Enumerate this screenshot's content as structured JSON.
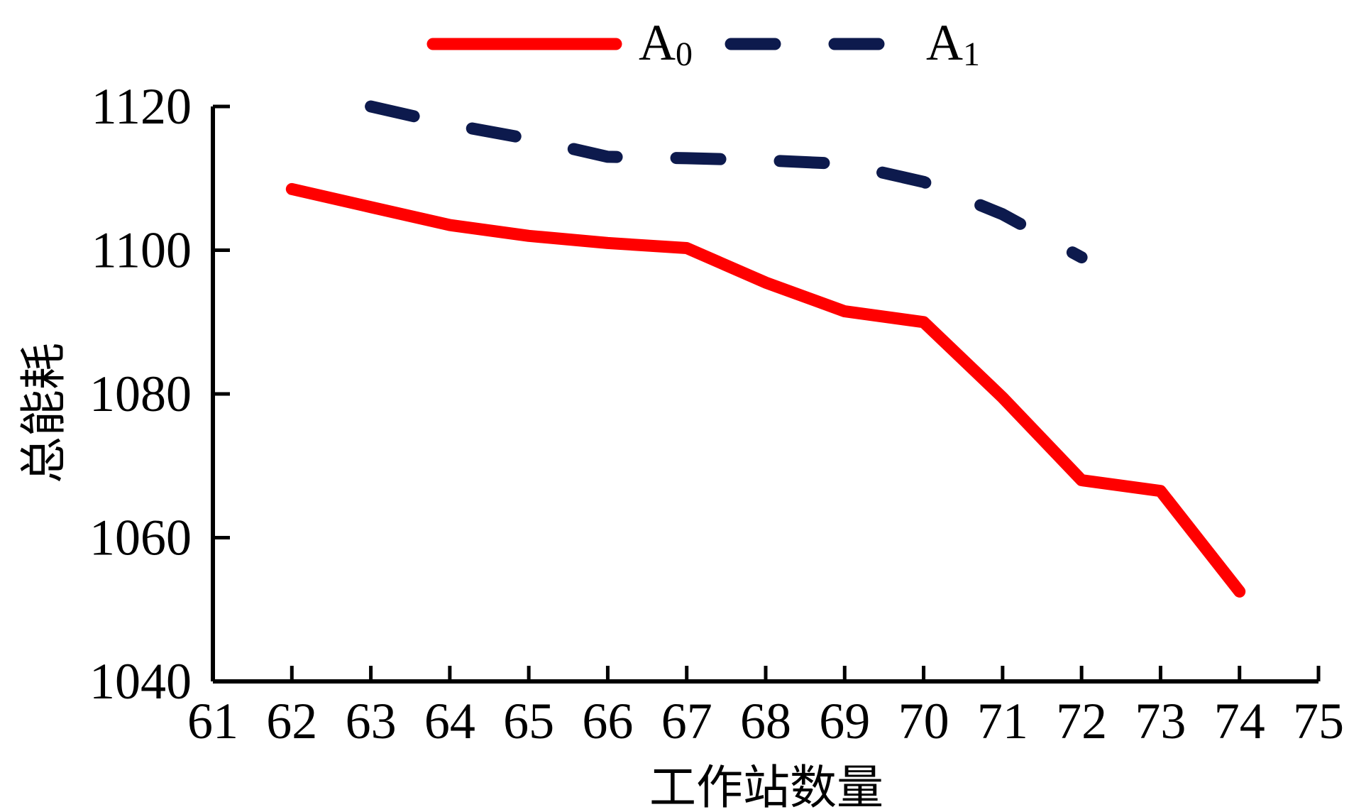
{
  "chart_data": {
    "type": "line",
    "title": "",
    "xlabel": "工作站数量",
    "ylabel": "总能耗",
    "xlim": [
      61,
      75
    ],
    "ylim": [
      1040,
      1120
    ],
    "xticks": [
      61,
      62,
      63,
      64,
      65,
      66,
      67,
      68,
      69,
      70,
      71,
      72,
      73,
      74,
      75
    ],
    "yticks": [
      1040,
      1060,
      1080,
      1100,
      1120
    ],
    "grid": false,
    "legend_position": "top-center",
    "series": [
      {
        "name": "A0",
        "label_main": "A",
        "label_sub": "0",
        "color": "#ff0000",
        "style": "solid",
        "x": [
          62,
          63,
          64,
          65,
          66,
          67,
          68,
          69,
          70,
          71,
          72,
          73,
          74
        ],
        "y": [
          1108.5,
          1106,
          1103.5,
          1102,
          1101,
          1100.3,
          1095.5,
          1091.5,
          1090,
          1079.5,
          1068,
          1066.5,
          1052.5
        ]
      },
      {
        "name": "A1",
        "label_main": "A",
        "label_sub": "1",
        "color": "#0d1a4d",
        "style": "dashed",
        "x": [
          63,
          64,
          65,
          66,
          67,
          68,
          69,
          70,
          71,
          72
        ],
        "y": [
          1120,
          1117.5,
          1115.5,
          1113,
          1112.8,
          1112.5,
          1112,
          1109.5,
          1105,
          1099
        ]
      }
    ]
  }
}
